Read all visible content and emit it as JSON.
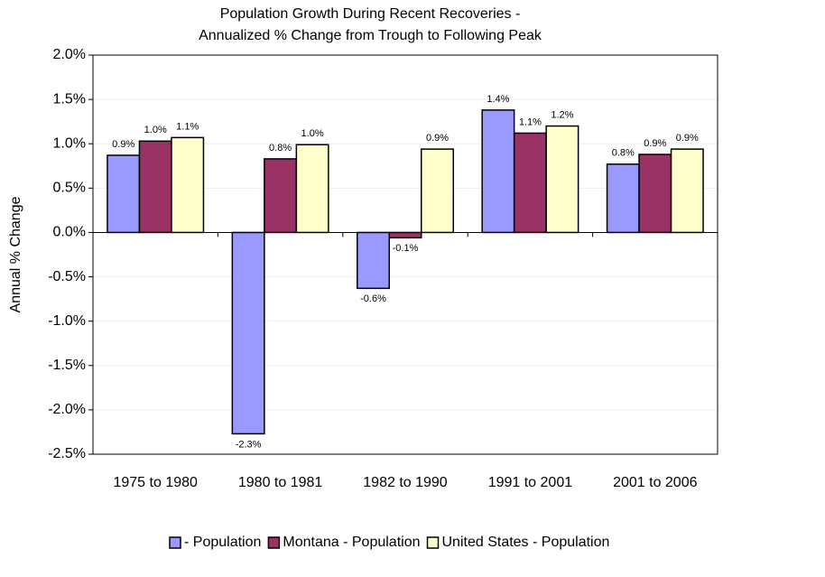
{
  "chart_data": {
    "type": "bar",
    "title": [
      "Population Growth During Recent Recoveries -",
      "Annualized % Change from Trough to Following Peak"
    ],
    "y_label": "Annual % Change",
    "categories": [
      "1975 to 1980",
      "1980 to 1981",
      "1982 to 1990",
      "1991 to 2001",
      "2001 to 2006"
    ],
    "series": [
      {
        "name": "- Population",
        "color": "#9999ff",
        "values": [
          0.87,
          -2.27,
          -0.63,
          1.38,
          0.77
        ],
        "value_labels": [
          "0.9%",
          "-2.3%",
          "-0.6%",
          "1.4%",
          "0.8%"
        ]
      },
      {
        "name": "Montana - Population",
        "color": "#993366",
        "values": [
          1.03,
          0.83,
          -0.06,
          1.12,
          0.88
        ],
        "value_labels": [
          "1.0%",
          "0.8%",
          "-0.1%",
          "1.1%",
          "0.9%"
        ]
      },
      {
        "name": "United States - Population",
        "color": "#ffffcc",
        "values": [
          1.07,
          0.99,
          0.94,
          1.2,
          0.94
        ],
        "value_labels": [
          "1.1%",
          "1.0%",
          "0.9%",
          "1.2%",
          "0.9%"
        ]
      }
    ],
    "ylim": [
      -2.5,
      2.0
    ],
    "yticks": [
      {
        "value": -2.5,
        "label": "-2.5%"
      },
      {
        "value": -2.0,
        "label": "-2.0%"
      },
      {
        "value": -1.5,
        "label": "-1.5%"
      },
      {
        "value": -1.0,
        "label": "-1.0%"
      },
      {
        "value": -0.5,
        "label": "-0.5%"
      },
      {
        "value": 0,
        "label": "0.0%"
      },
      {
        "value": 0.5,
        "label": "0.5%"
      },
      {
        "value": 1.0,
        "label": "1.0%"
      },
      {
        "value": 1.5,
        "label": "1.5%"
      },
      {
        "value": 2.0,
        "label": "2.0%"
      }
    ],
    "grid": true,
    "legend": "bottom"
  }
}
